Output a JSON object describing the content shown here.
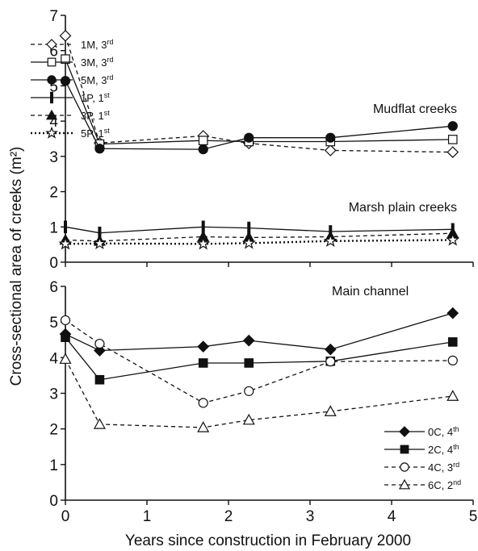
{
  "figure": {
    "ylabel": "Cross-sectional area of creeks (m²)",
    "xlabel": "Years since construction in February 2000"
  },
  "chart_data": [
    {
      "type": "line",
      "panel": "top",
      "x_ticks": [
        0,
        1,
        2,
        3,
        4,
        5
      ],
      "y_ticks": [
        0,
        1,
        2,
        3,
        4,
        5,
        6,
        7
      ],
      "xlim": [
        0,
        5
      ],
      "ylim": [
        0,
        7
      ],
      "annotations": [
        "Mudflat creeks",
        "Marsh plain creeks"
      ],
      "series": [
        {
          "name": "1M, 3rd",
          "label_base": "1M, 3",
          "label_sup": "rd",
          "marker": "diamond-open",
          "dash": "dashed",
          "legend_index": 0,
          "x": [
            0,
            0.42,
            1.69,
            2.25,
            3.25,
            4.75
          ],
          "y": [
            6.42,
            3.38,
            3.58,
            3.37,
            3.17,
            3.12
          ]
        },
        {
          "name": "3M, 3rd",
          "label_base": "3M, 3",
          "label_sup": "rd",
          "marker": "square-open",
          "dash": "solid",
          "legend_index": 1,
          "x": [
            0,
            0.42,
            1.69,
            2.25,
            3.25,
            4.75
          ],
          "y": [
            5.76,
            3.35,
            3.45,
            3.42,
            3.42,
            3.48
          ]
        },
        {
          "name": "5M, 3rd",
          "label_base": "5M, 3",
          "label_sup": "rd",
          "marker": "circle-filled",
          "dash": "solid",
          "legend_index": 2,
          "x": [
            0,
            0.42,
            1.69,
            2.25,
            3.25,
            4.75
          ],
          "y": [
            5.14,
            3.22,
            3.2,
            3.53,
            3.53,
            3.86
          ]
        },
        {
          "name": "1P, 1st",
          "label_base": "1P, 1",
          "label_sup": "st",
          "marker": "bar-filled",
          "dash": "solid",
          "legend_index": 3,
          "x": [
            0,
            0.42,
            1.69,
            2.25,
            3.25,
            4.75
          ],
          "y": [
            1.0,
            0.83,
            1.0,
            0.97,
            0.87,
            0.93
          ]
        },
        {
          "name": "3P, 1st",
          "label_base": "3P, 1",
          "label_sup": "st",
          "marker": "triangle-filled",
          "dash": "dashed",
          "legend_index": 4,
          "x": [
            0,
            0.42,
            1.69,
            2.25,
            3.25,
            4.75
          ],
          "y": [
            0.63,
            0.6,
            0.72,
            0.7,
            0.72,
            0.82
          ]
        },
        {
          "name": "5P, 1st",
          "label_base": "5P, 1",
          "label_sup": "st",
          "marker": "star-open",
          "dash": "dotted",
          "legend_index": 5,
          "x": [
            0,
            0.42,
            1.69,
            2.25,
            3.25,
            4.75
          ],
          "y": [
            0.52,
            0.53,
            0.52,
            0.54,
            0.6,
            0.63
          ]
        }
      ]
    },
    {
      "type": "line",
      "panel": "bottom",
      "x_ticks": [
        0,
        1,
        2,
        3,
        4,
        5
      ],
      "y_ticks": [
        0,
        1,
        2,
        3,
        4,
        5,
        6
      ],
      "xlim": [
        0,
        5
      ],
      "ylim": [
        0,
        6
      ],
      "annotations": [
        "Main channel"
      ],
      "series": [
        {
          "name": "0C, 4th",
          "label_base": "0C, 4",
          "label_sup": "th",
          "marker": "diamond-filled",
          "dash": "solid",
          "legend_index": 0,
          "x": [
            0,
            0.42,
            1.69,
            2.25,
            3.25,
            4.75
          ],
          "y": [
            4.66,
            4.2,
            4.31,
            4.48,
            4.23,
            5.25
          ]
        },
        {
          "name": "2C, 4th",
          "label_base": "2C, 4",
          "label_sup": "th",
          "marker": "square-filled",
          "dash": "solid",
          "legend_index": 1,
          "x": [
            0,
            0.42,
            1.69,
            2.25,
            3.25,
            4.75
          ],
          "y": [
            4.57,
            3.38,
            3.85,
            3.85,
            3.9,
            4.44
          ]
        },
        {
          "name": "4C, 3rd",
          "label_base": "4C, 3",
          "label_sup": "rd",
          "marker": "circle-open",
          "dash": "dashed",
          "legend_index": 2,
          "x": [
            0,
            0.42,
            1.69,
            2.25,
            3.25,
            4.75
          ],
          "y": [
            5.05,
            4.39,
            2.73,
            3.06,
            3.89,
            3.92
          ]
        },
        {
          "name": "6C, 2nd",
          "label_base": "6C, 2",
          "label_sup": "nd",
          "marker": "triangle-open",
          "dash": "dashed",
          "legend_index": 3,
          "x": [
            0,
            0.42,
            1.69,
            2.25,
            3.25,
            4.75
          ],
          "y": [
            3.96,
            2.13,
            2.04,
            2.25,
            2.49,
            2.92
          ]
        }
      ]
    }
  ]
}
